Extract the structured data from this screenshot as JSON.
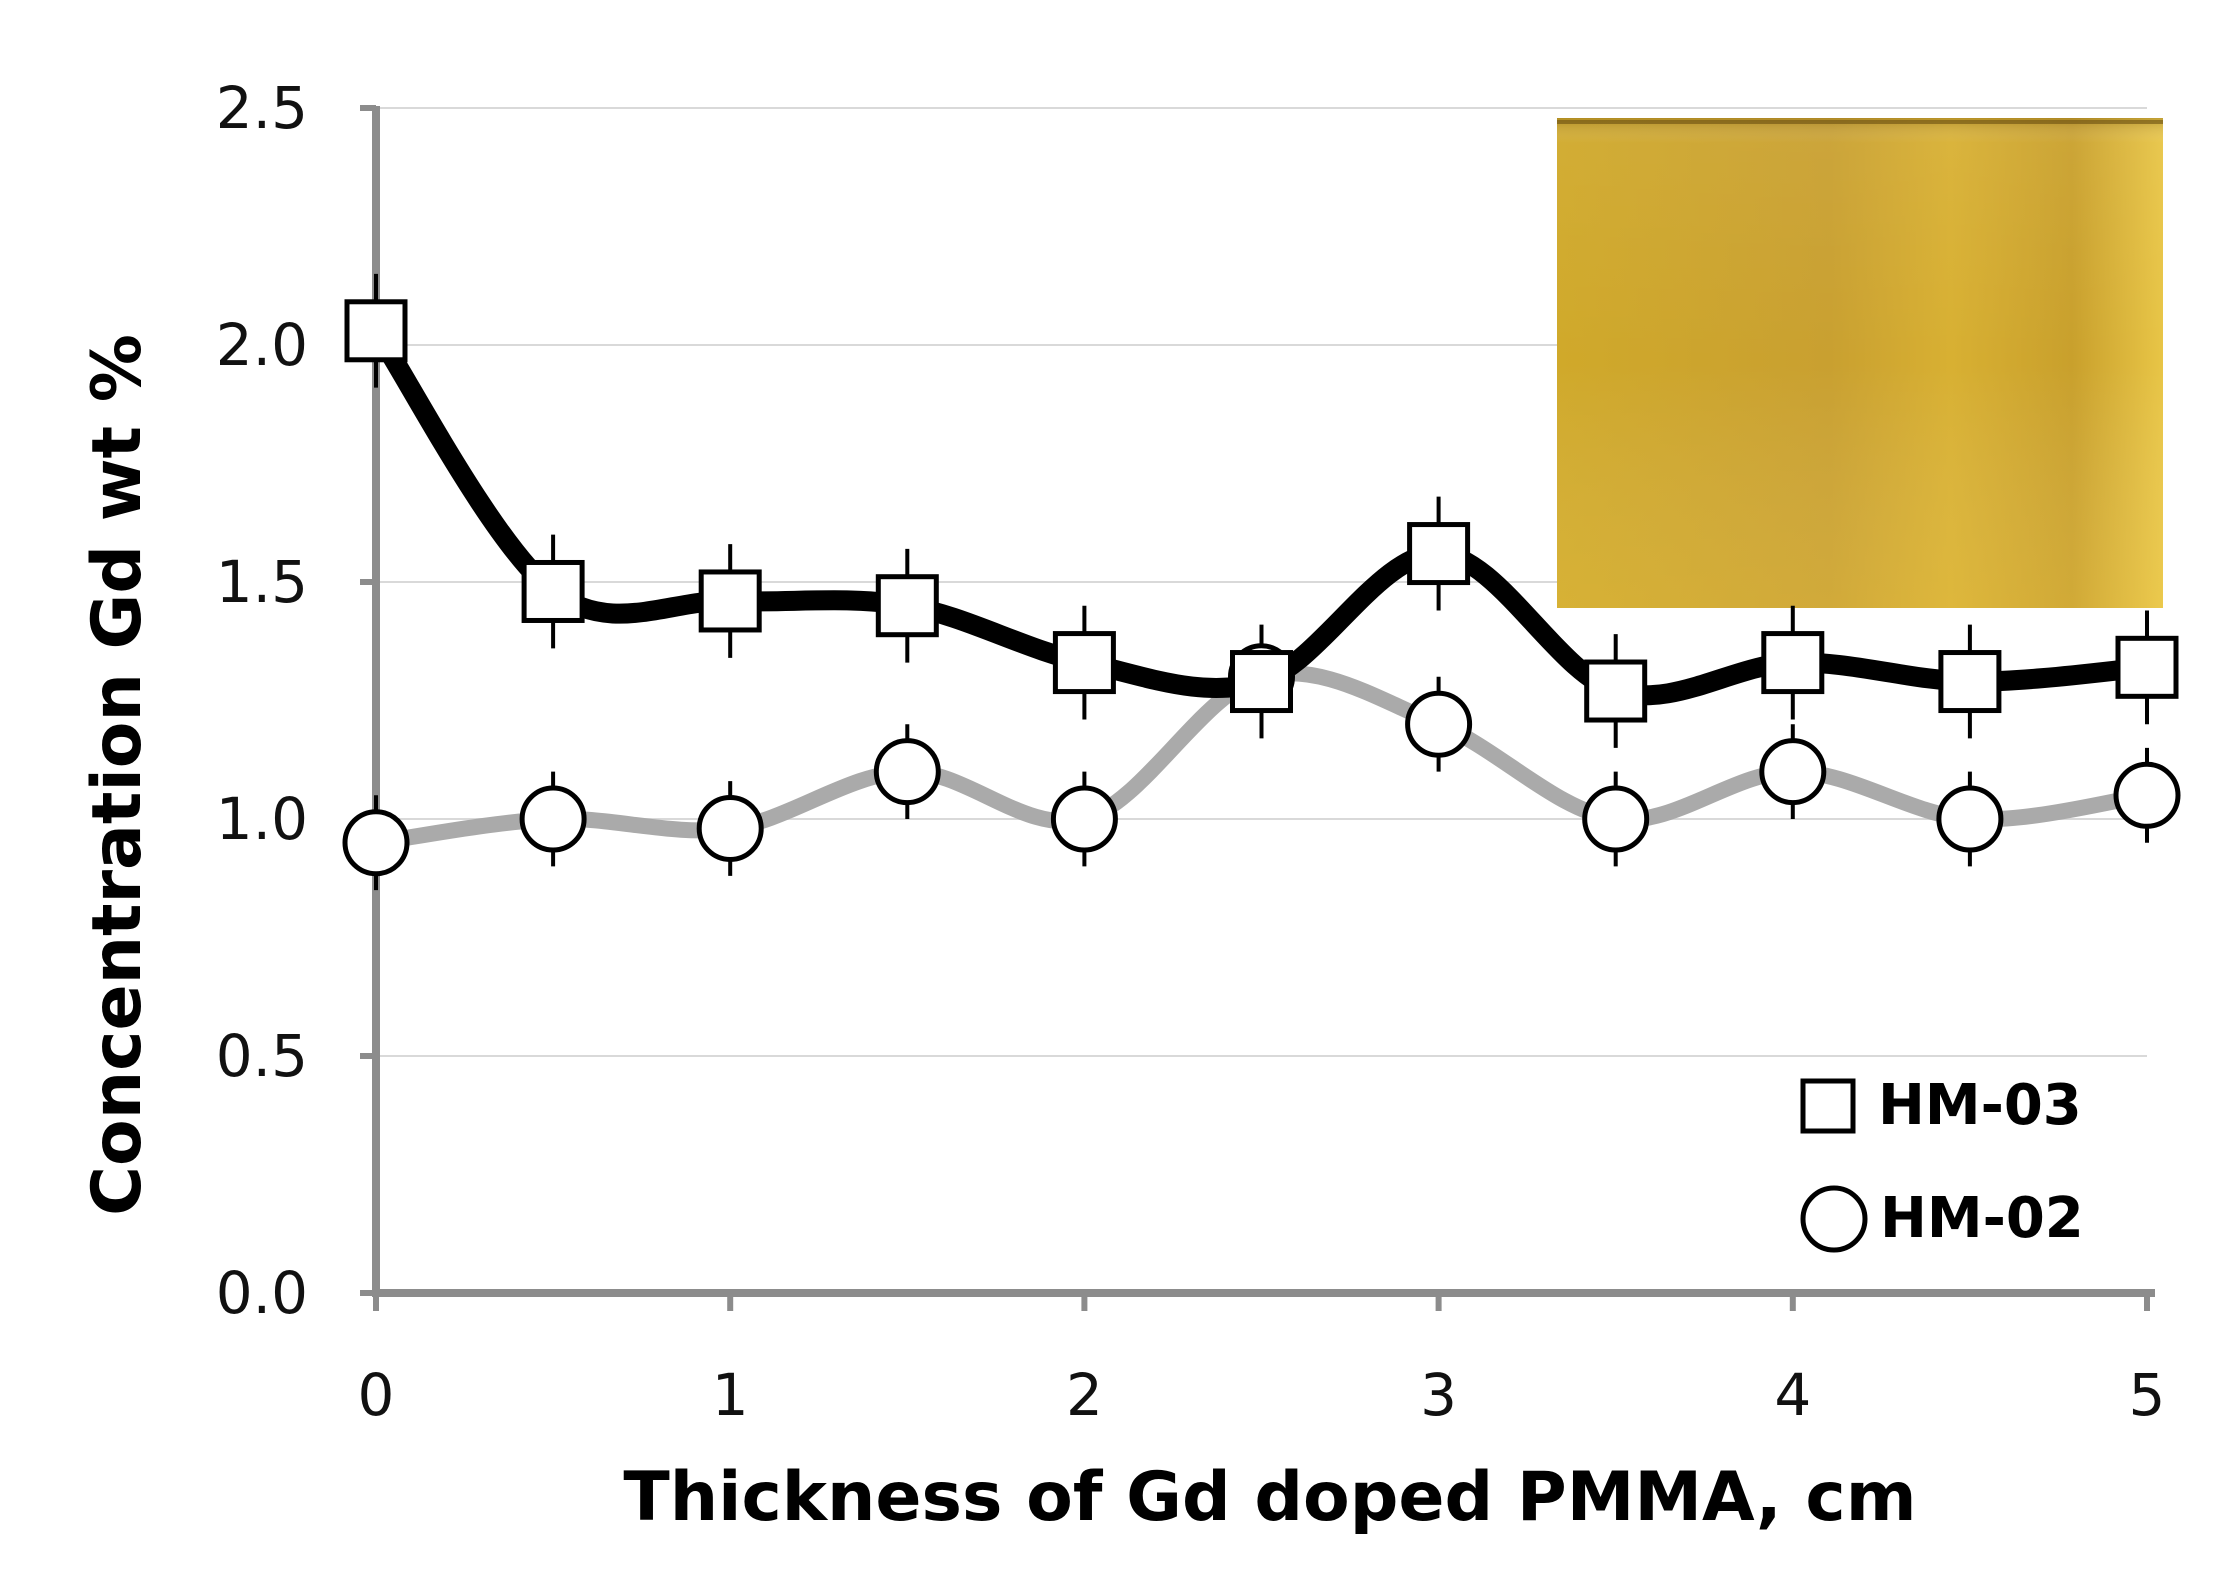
{
  "chart_data": {
    "type": "line",
    "title": "",
    "xlabel": "Thickness  of Gd doped PMMA, cm",
    "ylabel": "Concentration Gd wt %",
    "xlim": [
      0,
      5
    ],
    "ylim": [
      0,
      2.5
    ],
    "x_ticks": [
      "0",
      "1",
      "2",
      "3",
      "4",
      "5"
    ],
    "y_ticks": [
      "0.0",
      "0.5",
      "1.0",
      "1.5",
      "2.0",
      "2.5"
    ],
    "grid": true,
    "legend_position": "bottom-right",
    "inset": "photograph of yellow Gd doped PMMA sample",
    "x": [
      0,
      0.5,
      1,
      1.5,
      2,
      2.5,
      3,
      3.5,
      4,
      4.5,
      5
    ],
    "series": [
      {
        "name": "HM-03",
        "marker": "square",
        "line_color": "#000000",
        "values": [
          2.03,
          1.48,
          1.46,
          1.45,
          1.33,
          1.29,
          1.56,
          1.27,
          1.33,
          1.29,
          1.32
        ],
        "error": 0.12
      },
      {
        "name": "HM-02",
        "marker": "circle",
        "line_color": "#aaaaaa",
        "values": [
          0.95,
          1.0,
          0.98,
          1.1,
          1.0,
          1.3,
          1.2,
          1.0,
          1.1,
          1.0,
          1.05
        ],
        "error": 0.1
      }
    ],
    "legend": [
      {
        "label": "HM-03",
        "marker": "square"
      },
      {
        "label": "HM-02",
        "marker": "circle"
      }
    ]
  }
}
